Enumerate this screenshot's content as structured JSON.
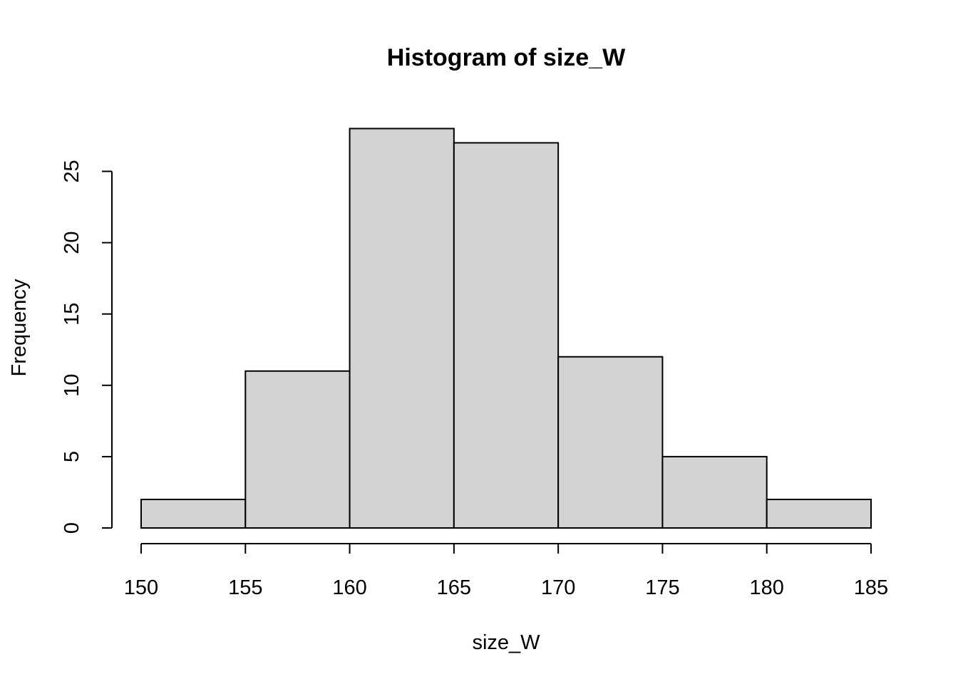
{
  "chart_data": {
    "type": "bar",
    "title": "Histogram of size_W",
    "xlabel": "size_W",
    "ylabel": "Frequency",
    "bins": [
      {
        "from": 150,
        "to": 155,
        "count": 2
      },
      {
        "from": 155,
        "to": 160,
        "count": 11
      },
      {
        "from": 160,
        "to": 165,
        "count": 28
      },
      {
        "from": 165,
        "to": 170,
        "count": 27
      },
      {
        "from": 170,
        "to": 175,
        "count": 12
      },
      {
        "from": 175,
        "to": 180,
        "count": 5
      },
      {
        "from": 180,
        "to": 185,
        "count": 2
      }
    ],
    "xlim": [
      150,
      185
    ],
    "ylim": [
      0,
      28
    ],
    "x_ticks": [
      150,
      155,
      160,
      165,
      170,
      175,
      180,
      185
    ],
    "y_ticks": [
      0,
      5,
      10,
      15,
      20,
      25
    ],
    "bar_color": "#d3d3d3",
    "grid": false
  }
}
